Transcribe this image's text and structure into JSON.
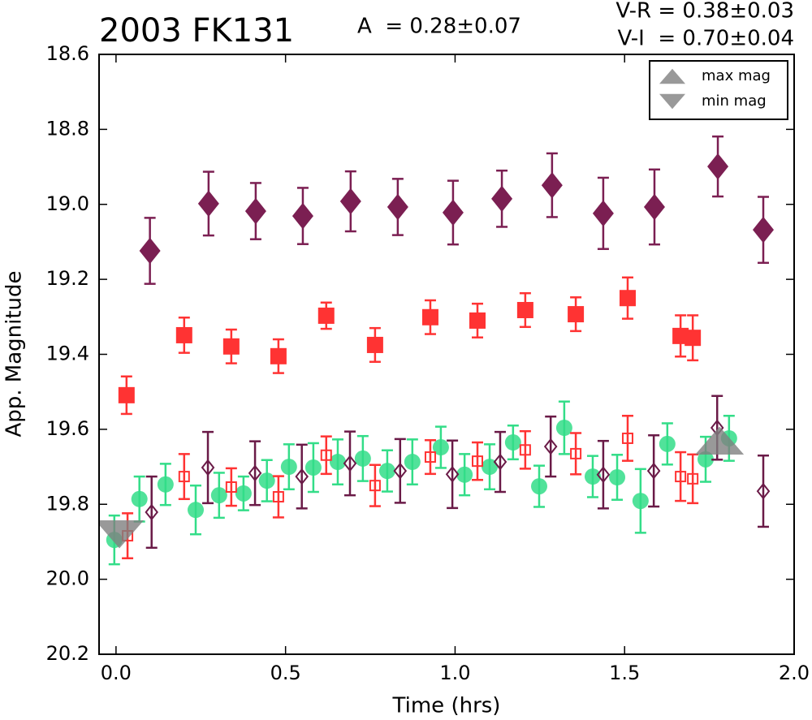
{
  "chart_data": {
    "type": "scatter",
    "title": "2003 FK131",
    "annotations": [
      "A  = 0.28±0.07",
      "V-R = 0.38±0.03",
      "V-I  = 0.70±0.04"
    ],
    "xlabel": "Time (hrs)",
    "ylabel": "App. Magnitude",
    "xlim": [
      -0.05,
      2.0
    ],
    "xticks": [
      {
        "value": 0,
        "label": "0.0"
      },
      0.5,
      {
        "value": 1,
        "label": "1.0"
      },
      1.5,
      {
        "value": 2,
        "label": "2.0"
      }
    ],
    "ylim": [
      20.2,
      18.6
    ],
    "yticks": [
      18.6,
      18.8,
      {
        "value": 19,
        "label": "19.0"
      },
      19.2,
      19.4,
      19.6,
      19.8,
      {
        "value": 20,
        "label": "20.0"
      },
      20.2
    ],
    "legend": "upper right",
    "series": [
      {
        "color": "#7b1f52",
        "marker": "D",
        "filled": true,
        "x": [
          0.1,
          0.273,
          0.412,
          0.551,
          0.692,
          0.831,
          0.994,
          1.138,
          1.286,
          1.437,
          1.588,
          1.775,
          1.909
        ],
        "values": [
          19.124,
          18.998,
          19.018,
          19.031,
          18.992,
          19.007,
          19.022,
          18.985,
          18.949,
          19.024,
          19.007,
          18.899,
          19.068
        ],
        "errors": [
          0.088,
          0.085,
          0.075,
          0.075,
          0.08,
          0.075,
          0.085,
          0.075,
          0.085,
          0.095,
          0.1,
          0.08,
          0.088
        ]
      },
      {
        "color": "#ff3333",
        "marker": "s",
        "filled": true,
        "x": [
          0.031,
          0.201,
          0.34,
          0.479,
          0.62,
          0.764,
          0.927,
          1.066,
          1.207,
          1.356,
          1.509,
          1.665,
          1.701
        ],
        "values": [
          19.509,
          19.349,
          19.379,
          19.405,
          19.297,
          19.375,
          19.301,
          19.31,
          19.282,
          19.293,
          19.25,
          19.351,
          19.356
        ],
        "errors": [
          0.05,
          0.047,
          0.045,
          0.045,
          0.035,
          0.045,
          0.045,
          0.045,
          0.045,
          0.045,
          0.055,
          0.055,
          0.06
        ]
      },
      {
        "color": "#33dd88",
        "marker": "o",
        "filled": true,
        "x": [
          -0.005,
          0.069,
          0.146,
          0.235,
          0.304,
          0.376,
          0.445,
          0.51,
          0.582,
          0.654,
          0.728,
          0.8,
          0.874,
          0.958,
          1.028,
          1.102,
          1.171,
          1.248,
          1.322,
          1.406,
          1.478,
          1.547,
          1.626,
          1.739,
          1.808
        ],
        "values": [
          19.895,
          19.786,
          19.747,
          19.815,
          19.776,
          19.771,
          19.737,
          19.7,
          19.702,
          19.687,
          19.678,
          19.711,
          19.687,
          19.648,
          19.721,
          19.7,
          19.635,
          19.752,
          19.596,
          19.726,
          19.728,
          19.791,
          19.639,
          19.68,
          19.624
        ],
        "errors": [
          0.065,
          0.06,
          0.055,
          0.065,
          0.06,
          0.045,
          0.055,
          0.06,
          0.065,
          0.06,
          0.06,
          0.055,
          0.06,
          0.055,
          0.055,
          0.06,
          0.045,
          0.055,
          0.07,
          0.055,
          0.06,
          0.085,
          0.055,
          0.06,
          0.06
        ]
      },
      {
        "color": "#ff3333",
        "marker": "s",
        "filled": false,
        "x": [
          0.034,
          0.201,
          0.34,
          0.479,
          0.62,
          0.764,
          0.927,
          1.066,
          1.207,
          1.356,
          1.509,
          1.665,
          1.701
        ],
        "values": [
          19.884,
          19.726,
          19.754,
          19.78,
          19.669,
          19.75,
          19.674,
          19.685,
          19.655,
          19.665,
          19.624,
          19.726,
          19.732
        ],
        "errors": [
          0.06,
          0.06,
          0.05,
          0.055,
          0.05,
          0.055,
          0.045,
          0.05,
          0.05,
          0.055,
          0.06,
          0.065,
          0.065
        ]
      },
      {
        "color": "#6a1a47",
        "marker": "D",
        "filled": false,
        "x": [
          0.105,
          0.271,
          0.41,
          0.548,
          0.69,
          0.838,
          0.992,
          1.133,
          1.282,
          1.437,
          1.586,
          1.773,
          1.909
        ],
        "values": [
          19.821,
          19.702,
          19.717,
          19.726,
          19.691,
          19.711,
          19.72,
          19.687,
          19.646,
          19.721,
          19.711,
          19.596,
          19.765
        ],
        "errors": [
          0.095,
          0.095,
          0.085,
          0.085,
          0.085,
          0.085,
          0.09,
          0.08,
          0.08,
          0.09,
          0.095,
          0.085,
          0.095
        ]
      },
      {
        "name": "max mag",
        "color": "#808080",
        "marker": "^",
        "filled": true,
        "x": [
          1.78
        ],
        "values": [
          19.63
        ]
      },
      {
        "name": "min mag",
        "color": "#808080",
        "marker": "v",
        "filled": true,
        "x": [
          0.01
        ],
        "values": [
          19.88
        ]
      }
    ]
  }
}
